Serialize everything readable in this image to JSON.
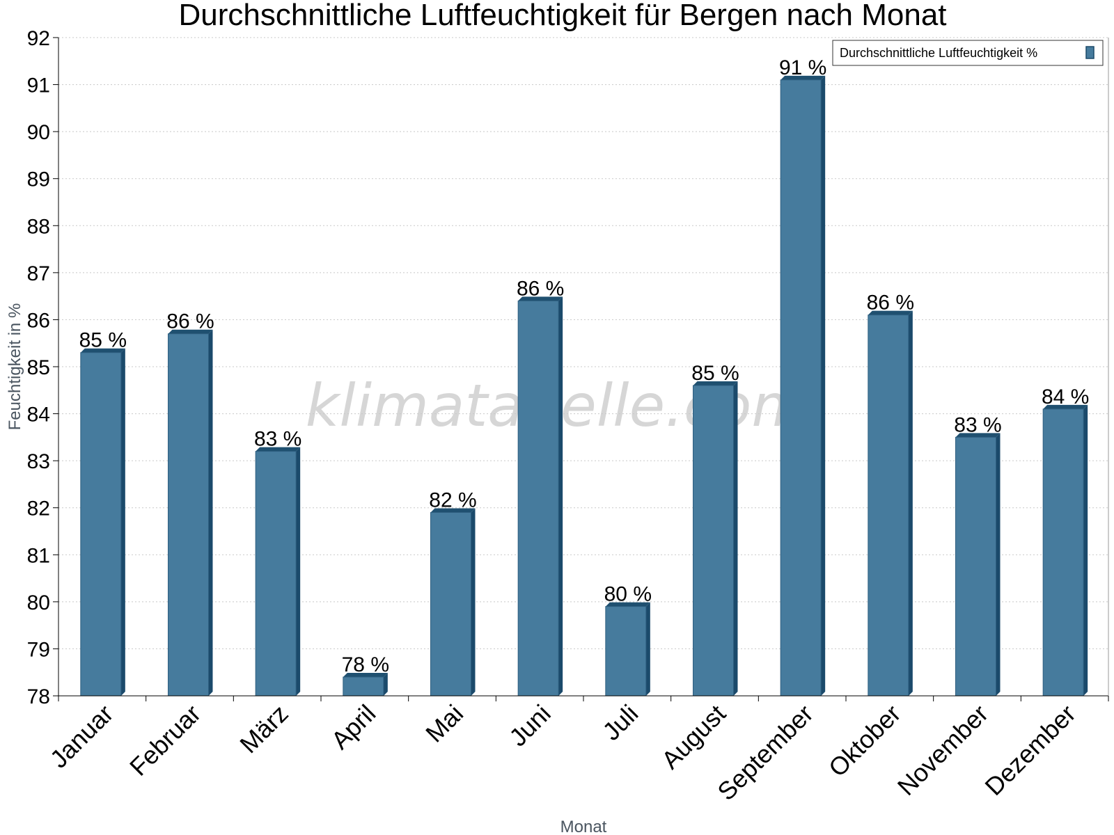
{
  "chart_data": {
    "type": "bar",
    "title": "Durchschnittliche Luftfeuchtigkeit für Bergen nach Monat",
    "xlabel": "Monat",
    "ylabel": "Feuchtigkeit in %",
    "ylim": [
      78,
      92
    ],
    "yticks": [
      "78",
      "79",
      "80",
      "81",
      "82",
      "83",
      "84",
      "85",
      "86",
      "87",
      "88",
      "89",
      "90",
      "91",
      "92"
    ],
    "grid": true,
    "legend_position": "top-right",
    "categories": [
      "Januar",
      "Februar",
      "März",
      "April",
      "Mai",
      "Juni",
      "Juli",
      "August",
      "September",
      "Oktober",
      "November",
      "Dezember"
    ],
    "series": [
      {
        "name": "Durchschnittliche Luftfeuchtigkeit %",
        "color": "#467b9d",
        "values": [
          85.3,
          85.7,
          83.2,
          78.4,
          81.9,
          86.4,
          79.9,
          84.6,
          91.1,
          86.1,
          83.5,
          84.1
        ],
        "labels": [
          "85 %",
          "86 %",
          "83 %",
          "78 %",
          "82 %",
          "86 %",
          "80 %",
          "85 %",
          "91 %",
          "86 %",
          "83 %",
          "84 %"
        ]
      }
    ],
    "watermark": "klimatabelle.com"
  }
}
